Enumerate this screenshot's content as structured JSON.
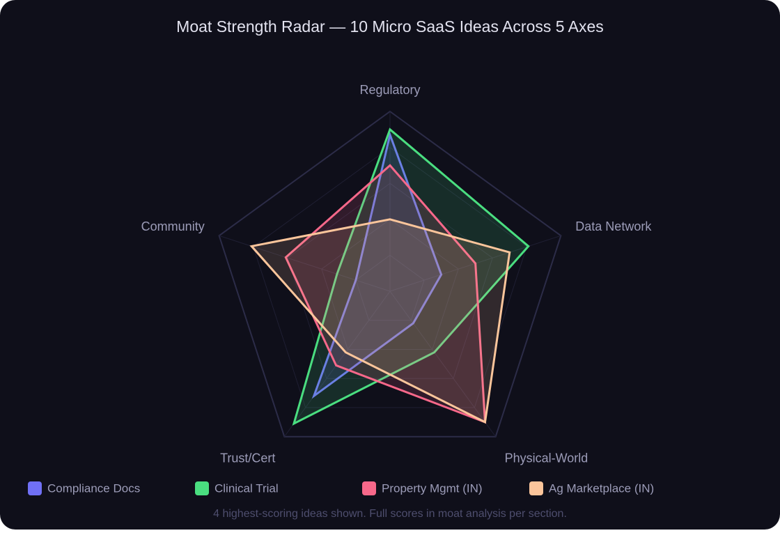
{
  "chart_data": {
    "type": "radar",
    "title": "Moat Strength Radar — 10 Micro SaaS Ideas Across 5 Axes",
    "categories": [
      "Regulatory",
      "Data Network",
      "Physical-World",
      "Trust/Cert",
      "Community"
    ],
    "rlim": [
      0,
      10
    ],
    "rticks": [
      2,
      4,
      6,
      8,
      10
    ],
    "grid": true,
    "series": [
      {
        "name": "Compliance Docs",
        "color": "#7070f5",
        "values": [
          8.7,
          3,
          2.2,
          7.2,
          2
        ]
      },
      {
        "name": "Clinical Trial",
        "color": "#4ade80",
        "values": [
          9,
          8.1,
          4.2,
          9.1,
          3.1
        ]
      },
      {
        "name": "Property Mgmt (IN)",
        "color": "#f7688a",
        "values": [
          7,
          5,
          9,
          5.1,
          6.1
        ]
      },
      {
        "name": "Ag Marketplace (IN)",
        "color": "#fbc59b",
        "values": [
          4,
          7,
          9,
          4.2,
          8.1
        ]
      }
    ],
    "legend": "bottom",
    "footnote": "4 highest-scoring ideas shown. Full scores in moat analysis per section."
  }
}
